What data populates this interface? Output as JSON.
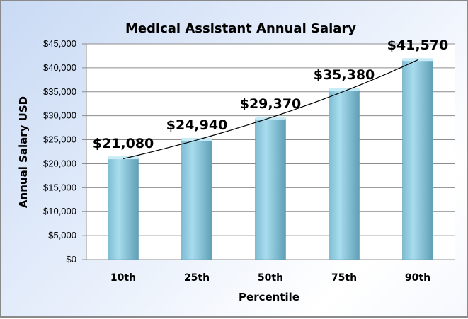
{
  "chart_data": {
    "type": "bar",
    "title": "Medical Assistant Annual Salary",
    "xlabel": "Percentile",
    "ylabel": "Annual Salary USD",
    "categories": [
      "10th",
      "25th",
      "50th",
      "75th",
      "90th"
    ],
    "values": [
      21080,
      24940,
      29370,
      35380,
      41570
    ],
    "data_labels": [
      "$21,080",
      "$24,940",
      "$29,370",
      "$35,380",
      "$41,570"
    ],
    "ylim": [
      0,
      45000
    ],
    "yticks": [
      0,
      5000,
      10000,
      15000,
      20000,
      25000,
      30000,
      35000,
      40000,
      45000
    ],
    "ytick_labels": [
      "$0",
      "$5,000",
      "$10,000",
      "$15,000",
      "$20,000",
      "$25,000",
      "$30,000",
      "$35,000",
      "$40,000",
      "$45,000"
    ],
    "grid": true,
    "trendline": "exponential",
    "legend": "none",
    "colors": {
      "bar": "#8fcde3",
      "bar_dark": "#5a9fb8",
      "grid": "#8c8c8c",
      "trendline": "#000000"
    }
  }
}
